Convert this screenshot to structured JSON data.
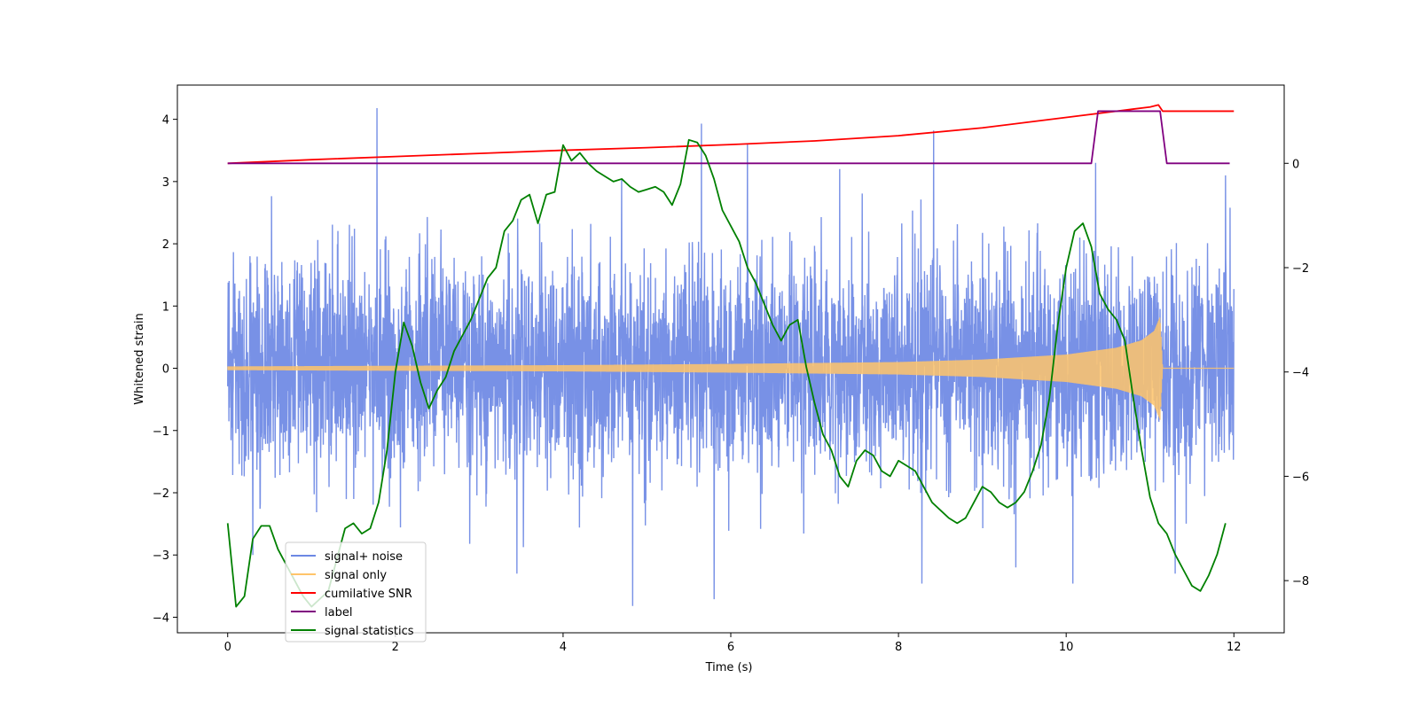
{
  "chart_data": {
    "type": "line",
    "title": "",
    "xlabel": "Time (s)",
    "ylabel": "Whitened strain",
    "ylabel_right": "",
    "xlim": [
      -0.6,
      12.6
    ],
    "ylim": [
      -4.25,
      4.55
    ],
    "ylim_right": [
      -9.0,
      1.5
    ],
    "x_ticks": [
      0,
      2,
      4,
      6,
      8,
      10,
      12
    ],
    "x_tick_labels": [
      "0",
      "2",
      "4",
      "6",
      "8",
      "10",
      "12"
    ],
    "y_ticks": [
      -4,
      -3,
      -2,
      -1,
      0,
      1,
      2,
      3,
      4
    ],
    "y_tick_labels": [
      "−4",
      "−3",
      "−2",
      "−1",
      "0",
      "1",
      "2",
      "3",
      "4"
    ],
    "y_ticks_right": [
      -8,
      -6,
      -4,
      -2,
      0
    ],
    "y_tick_labels_right": [
      "−8",
      "−6",
      "−4",
      "−2",
      "0"
    ],
    "grid": false,
    "legend_position": "lower-left",
    "legend": [
      {
        "label": "signal+ noise",
        "color": "#6c88e4"
      },
      {
        "label": "signal only",
        "color": "#ffc46a"
      },
      {
        "label": "cumilative SNR",
        "color": "#ff0000"
      },
      {
        "label": "label",
        "color": "#800080"
      },
      {
        "label": "signal statistics",
        "color": "#008000"
      }
    ],
    "series": [
      {
        "name": "signal+ noise",
        "axis": "left",
        "color": "#6c88e4",
        "x_range": [
          0,
          12
        ],
        "envelope_typical": [
          -1.7,
          1.7
        ],
        "spikes": [
          {
            "x": 1.78,
            "y": 4.18
          },
          {
            "x": 5.65,
            "y": 3.93
          },
          {
            "x": 8.42,
            "y": 3.82
          },
          {
            "x": 4.83,
            "y": -3.82
          },
          {
            "x": 5.8,
            "y": -3.71
          },
          {
            "x": 8.28,
            "y": -3.46
          },
          {
            "x": 10.08,
            "y": -3.46
          },
          {
            "x": 11.3,
            "y": -3.3
          },
          {
            "x": 3.45,
            "y": -3.3
          },
          {
            "x": 6.2,
            "y": 3.6
          },
          {
            "x": 10.35,
            "y": 3.3
          },
          {
            "x": 11.9,
            "y": 3.1
          },
          {
            "x": 0.3,
            "y": -3.0
          },
          {
            "x": 7.3,
            "y": 3.2
          },
          {
            "x": 9.4,
            "y": -3.2
          }
        ]
      },
      {
        "name": "signal only",
        "axis": "left",
        "color": "#ffc46a",
        "x_range": [
          0,
          12
        ],
        "amplitude_points": [
          {
            "x": 0,
            "y": 0.03
          },
          {
            "x": 2,
            "y": 0.04
          },
          {
            "x": 4,
            "y": 0.05
          },
          {
            "x": 6,
            "y": 0.07
          },
          {
            "x": 8,
            "y": 0.1
          },
          {
            "x": 9,
            "y": 0.14
          },
          {
            "x": 10,
            "y": 0.22
          },
          {
            "x": 10.6,
            "y": 0.33
          },
          {
            "x": 10.9,
            "y": 0.45
          },
          {
            "x": 11.05,
            "y": 0.6
          },
          {
            "x": 11.12,
            "y": 0.83
          },
          {
            "x": 11.15,
            "y": 0.0
          },
          {
            "x": 12,
            "y": 0.0
          }
        ]
      },
      {
        "name": "cumilative SNR",
        "axis": "right",
        "color": "#ff0000",
        "x": [
          0,
          1,
          2,
          3,
          4,
          5,
          6,
          7,
          8,
          9,
          9.5,
          10,
          10.5,
          10.8,
          11,
          11.1,
          11.15,
          12
        ],
        "y": [
          0.0,
          0.07,
          0.13,
          0.19,
          0.25,
          0.3,
          0.36,
          0.43,
          0.53,
          0.68,
          0.78,
          0.88,
          0.98,
          1.04,
          1.08,
          1.12,
          1.0,
          1.0
        ]
      },
      {
        "name": "label",
        "axis": "right",
        "color": "#800080",
        "x": [
          0,
          10.3,
          10.38,
          11.12,
          11.2,
          11.95
        ],
        "y": [
          0,
          0,
          1,
          1,
          0,
          0
        ]
      },
      {
        "name": "signal statistics",
        "axis": "right",
        "color": "#008000",
        "x": [
          0,
          0.1,
          0.2,
          0.3,
          0.4,
          0.5,
          0.6,
          0.7,
          0.8,
          0.9,
          1.0,
          1.1,
          1.2,
          1.3,
          1.4,
          1.5,
          1.6,
          1.7,
          1.8,
          1.9,
          2.0,
          2.1,
          2.2,
          2.3,
          2.4,
          2.5,
          2.6,
          2.7,
          2.8,
          2.9,
          3.0,
          3.1,
          3.2,
          3.3,
          3.4,
          3.5,
          3.6,
          3.7,
          3.8,
          3.9,
          4.0,
          4.1,
          4.2,
          4.3,
          4.4,
          4.5,
          4.6,
          4.7,
          4.8,
          4.9,
          5.0,
          5.1,
          5.2,
          5.3,
          5.4,
          5.5,
          5.6,
          5.7,
          5.8,
          5.9,
          6.0,
          6.1,
          6.2,
          6.3,
          6.4,
          6.5,
          6.6,
          6.7,
          6.8,
          6.9,
          7.0,
          7.1,
          7.2,
          7.3,
          7.4,
          7.5,
          7.6,
          7.7,
          7.8,
          7.9,
          8.0,
          8.1,
          8.2,
          8.3,
          8.4,
          8.5,
          8.6,
          8.7,
          8.8,
          8.9,
          9.0,
          9.1,
          9.2,
          9.3,
          9.4,
          9.5,
          9.6,
          9.7,
          9.8,
          9.9,
          10.0,
          10.1,
          10.2,
          10.3,
          10.4,
          10.5,
          10.6,
          10.7,
          10.8,
          10.9,
          11.0,
          11.1,
          11.2,
          11.3,
          11.4,
          11.5,
          11.6,
          11.7,
          11.8,
          11.9
        ],
        "y": [
          -6.9,
          -8.5,
          -8.3,
          -7.2,
          -6.95,
          -6.95,
          -7.4,
          -7.7,
          -8.0,
          -8.3,
          -8.5,
          -8.35,
          -8.2,
          -7.6,
          -7.0,
          -6.9,
          -7.1,
          -7.0,
          -6.5,
          -5.5,
          -4.0,
          -3.05,
          -3.5,
          -4.2,
          -4.7,
          -4.35,
          -4.1,
          -3.6,
          -3.3,
          -3.0,
          -2.6,
          -2.2,
          -2.0,
          -1.3,
          -1.1,
          -0.7,
          -0.6,
          -1.15,
          -0.6,
          -0.55,
          0.35,
          0.05,
          0.2,
          0.0,
          -0.15,
          -0.25,
          -0.35,
          -0.3,
          -0.45,
          -0.55,
          -0.5,
          -0.45,
          -0.55,
          -0.8,
          -0.4,
          0.45,
          0.4,
          0.15,
          -0.3,
          -0.9,
          -1.2,
          -1.5,
          -2.0,
          -2.3,
          -2.7,
          -3.1,
          -3.4,
          -3.1,
          -3.0,
          -3.9,
          -4.6,
          -5.2,
          -5.5,
          -6.0,
          -6.2,
          -5.7,
          -5.5,
          -5.6,
          -5.9,
          -6.0,
          -5.7,
          -5.8,
          -5.9,
          -6.2,
          -6.5,
          -6.65,
          -6.8,
          -6.9,
          -6.8,
          -6.5,
          -6.2,
          -6.3,
          -6.5,
          -6.6,
          -6.5,
          -6.3,
          -5.9,
          -5.4,
          -4.5,
          -3.1,
          -2.0,
          -1.3,
          -1.15,
          -1.6,
          -2.5,
          -2.8,
          -3.0,
          -3.4,
          -4.5,
          -5.5,
          -6.4,
          -6.9,
          -7.1,
          -7.5,
          -7.8,
          -8.1,
          -8.2,
          -7.9,
          -7.5,
          -6.9
        ]
      }
    ]
  }
}
